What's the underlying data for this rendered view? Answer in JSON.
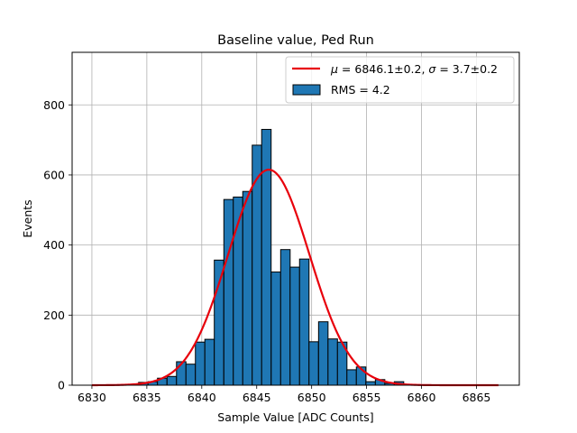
{
  "chart_data": {
    "type": "bar",
    "title": "Baseline value, Ped Run",
    "xlabel": "Sample Value [ADC Counts]",
    "ylabel": "Events",
    "xlim": [
      6828.2,
      6868.9
    ],
    "ylim": [
      0,
      950
    ],
    "grid": true,
    "bar_color": "#1f77b4",
    "fit_color": "#e8000b",
    "x_ticks": [
      6830,
      6835,
      6840,
      6845,
      6850,
      6855,
      6860,
      6865
    ],
    "y_ticks": [
      0,
      200,
      400,
      600,
      800
    ],
    "legend": {
      "location": "top-right",
      "entries": [
        {
          "type": "line",
          "label_mu_symbol": "μ",
          "label_sigma_symbol": "σ",
          "label_eq": " = ",
          "mu_text": "6846.1±0.2, ",
          "sigma_text": "3.7±0.2"
        },
        {
          "type": "patch",
          "label": "RMS = 4.2"
        }
      ]
    },
    "histogram": {
      "bin_width": 0.862,
      "bin_starts": [
        6834.25,
        6835.11,
        6835.97,
        6836.84,
        6837.7,
        6838.56,
        6839.42,
        6840.28,
        6841.14,
        6842.01,
        6842.87,
        6843.73,
        6844.59,
        6845.45,
        6846.32,
        6847.18,
        6848.04,
        6848.9,
        6849.76,
        6850.63,
        6851.49,
        6852.35,
        6853.21,
        6854.07,
        6854.94,
        6855.8,
        6856.66,
        6857.52,
        6858.38,
        6859.25,
        6860.11,
        6860.97
      ],
      "counts": [
        8,
        10,
        20,
        25,
        67,
        60,
        123,
        131,
        357,
        530,
        537,
        553,
        685,
        730,
        323,
        387,
        337,
        360,
        124,
        181,
        132,
        123,
        44,
        52,
        10,
        16,
        5,
        10,
        2,
        1,
        0,
        0
      ]
    },
    "fit": {
      "model": "gaussian",
      "mu": 6846.1,
      "sigma": 3.7,
      "amplitude": 615,
      "x_range": [
        6830,
        6867
      ]
    }
  }
}
